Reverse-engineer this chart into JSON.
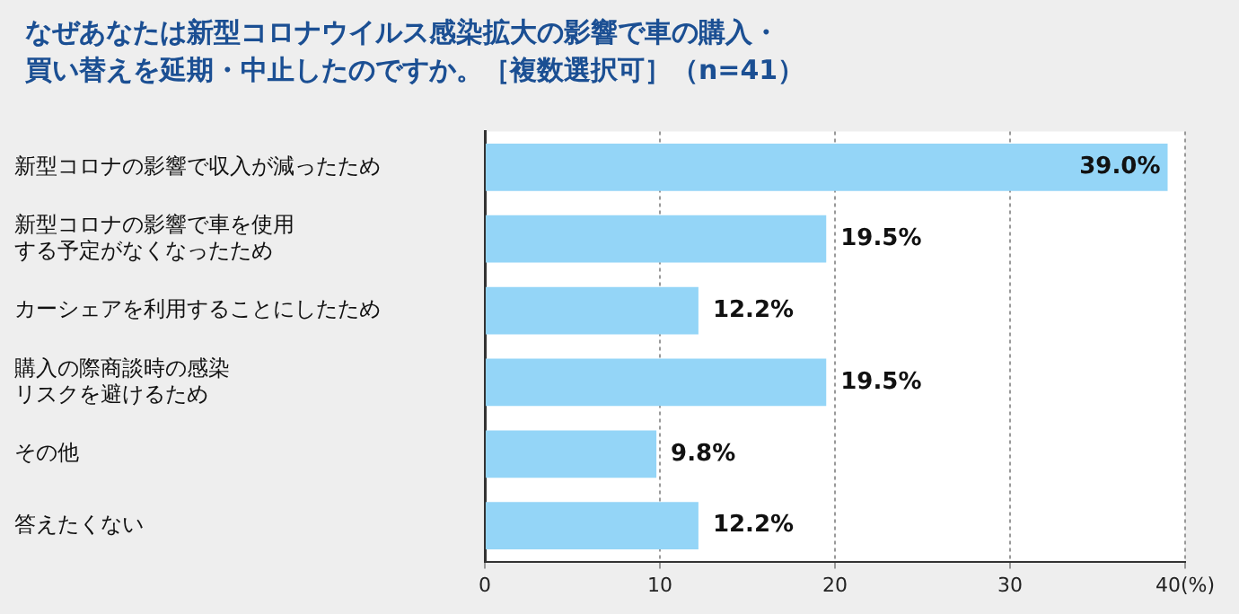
{
  "chart_data": {
    "type": "bar",
    "orientation": "horizontal",
    "title": "なぜあなたは新型コロナウイルス感染拡大の影響で車の購入・買い替えを延期・中止したのですか。［複数選択可］（n=41）",
    "categories": [
      "新型コロナの影響で収入が減ったため",
      "新型コロナの影響で車を使用する予定がなくなったため",
      "カーシェアを利用することにしたため",
      "購入の際商談時の感染リスクを避けるため",
      "その他",
      "答えたくない"
    ],
    "values": [
      39.0,
      19.5,
      12.2,
      19.5,
      9.8,
      12.2
    ],
    "value_labels": [
      "39.0%",
      "19.5%",
      "12.2%",
      "19.5%",
      "9.8%",
      "12.2%"
    ],
    "color": "#94d5f7",
    "xlim": [
      0,
      40
    ],
    "xticks": [
      0,
      10,
      20,
      30,
      {
        "value": 40,
        "label": "40(%)"
      }
    ],
    "grid": "x"
  }
}
